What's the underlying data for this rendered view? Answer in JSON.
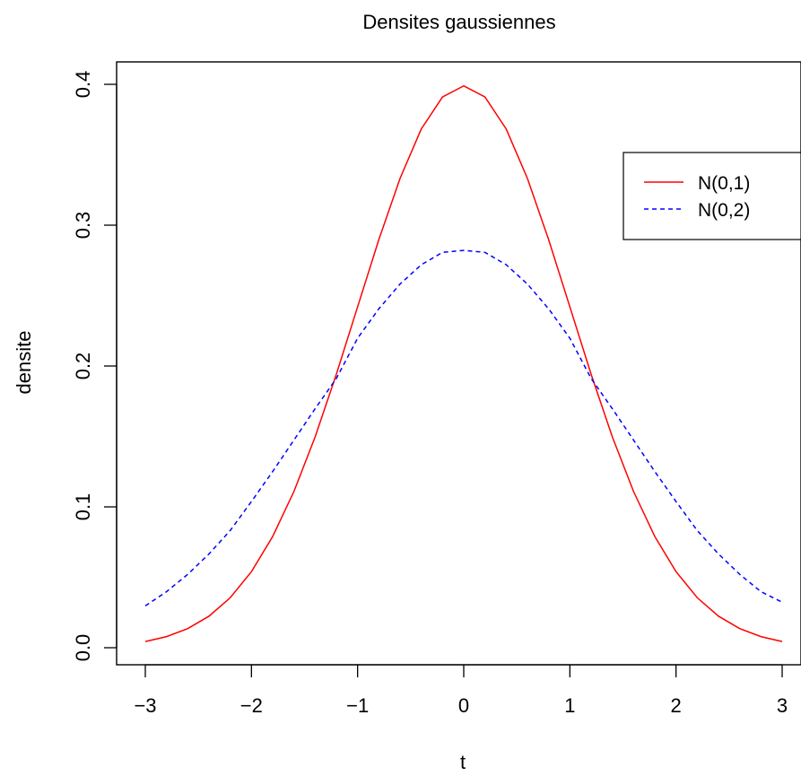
{
  "chart_data": {
    "type": "line",
    "title": "Densites gaussiennes",
    "xlabel": "t",
    "ylabel": "densite",
    "xlim": [
      -3,
      3
    ],
    "ylim": [
      0,
      0.4
    ],
    "x_ticks": [
      "−3",
      "−2",
      "−1",
      "0",
      "1",
      "2",
      "3"
    ],
    "x_tick_values": [
      -3,
      -2,
      -1,
      0,
      1,
      2,
      3
    ],
    "y_ticks": [
      "0.0",
      "0.1",
      "0.2",
      "0.3",
      "0.4"
    ],
    "y_tick_values": [
      0,
      0.1,
      0.2,
      0.3,
      0.4
    ],
    "grid": false,
    "legend_position": "top-right",
    "x": [
      -3.0,
      -2.8,
      -2.6,
      -2.4,
      -2.2,
      -2.0,
      -1.8,
      -1.6,
      -1.4,
      -1.2,
      -1.0,
      -0.8,
      -0.6,
      -0.4,
      -0.2,
      0.0,
      0.2,
      0.4,
      0.6,
      0.8,
      1.0,
      1.2,
      1.4,
      1.6,
      1.8,
      2.0,
      2.2,
      2.4,
      2.6,
      2.8,
      3.0
    ],
    "series": [
      {
        "name": "N(0,1)",
        "color": "#ff0000",
        "dash": "solid",
        "values": [
          0.0044,
          0.0079,
          0.0136,
          0.0224,
          0.0355,
          0.054,
          0.079,
          0.1109,
          0.1497,
          0.1942,
          0.242,
          0.2897,
          0.3332,
          0.3683,
          0.391,
          0.3989,
          0.391,
          0.3683,
          0.3332,
          0.2897,
          0.242,
          0.1942,
          0.1497,
          0.1109,
          0.079,
          0.054,
          0.0355,
          0.0224,
          0.0136,
          0.0079,
          0.0044
        ]
      },
      {
        "name": "N(0,2)",
        "color": "#0000ff",
        "dash": "dashed",
        "values": [
          0.0297,
          0.0398,
          0.0521,
          0.0666,
          0.0832,
          0.1038,
          0.1251,
          0.1474,
          0.1697,
          0.1912,
          0.2197,
          0.2406,
          0.2582,
          0.2719,
          0.2807,
          0.2821,
          0.2807,
          0.2719,
          0.2582,
          0.2406,
          0.2197,
          0.1912,
          0.1697,
          0.1474,
          0.1251,
          0.1038,
          0.0832,
          0.0666,
          0.0521,
          0.0398,
          0.0323
        ]
      }
    ]
  }
}
